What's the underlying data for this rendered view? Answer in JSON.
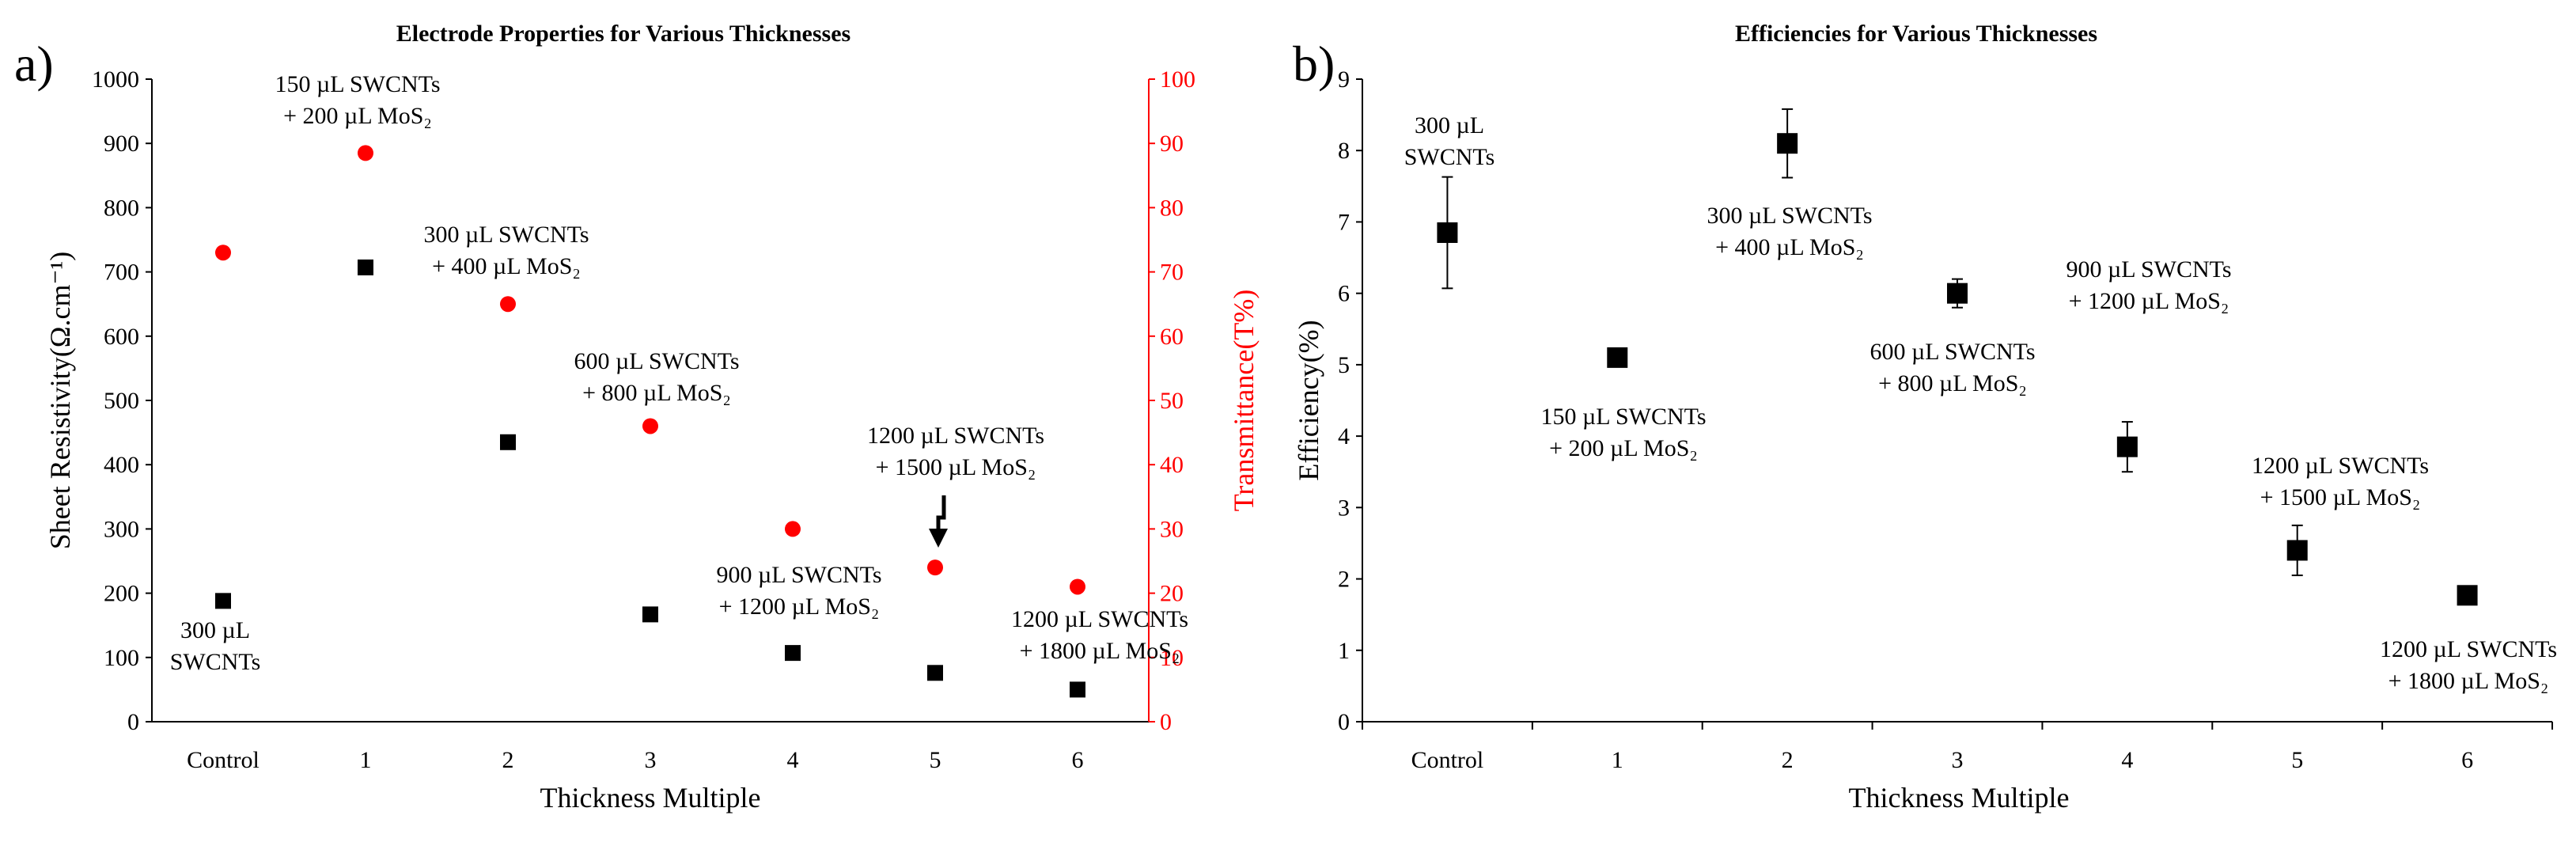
{
  "chart_data": [
    {
      "panel_label": "a)",
      "type": "scatter",
      "title": "Electrode Properties for Various Thicknesses",
      "xlabel": "Thickness Multiple",
      "ylabel": "Sheet Resistivity(Ω.cm⁻¹)",
      "y2label": "Transmittance(T%)",
      "categories": [
        "Control",
        "1",
        "2",
        "3",
        "4",
        "5",
        "6"
      ],
      "ylim": [
        0,
        1000
      ],
      "y2lim": [
        0,
        100
      ],
      "yticks": [
        "0",
        "100",
        "200",
        "300",
        "400",
        "500",
        "600",
        "700",
        "800",
        "900",
        "1000"
      ],
      "y2ticks": [
        "0",
        "10",
        "20",
        "30",
        "40",
        "50",
        "60",
        "70",
        "80",
        "90",
        "100"
      ],
      "series": [
        {
          "name": "Sheet Resistivity",
          "axis": "left",
          "color": "#000000",
          "marker": "square",
          "values": [
            188,
            707,
            435,
            167,
            107,
            76,
            50
          ]
        },
        {
          "name": "Transmittance",
          "axis": "right",
          "color": "#ff0000",
          "marker": "circle",
          "values": [
            73,
            88.5,
            65,
            46,
            30,
            24,
            21
          ]
        }
      ],
      "annotations": [
        {
          "lines": [
            "300 µL",
            "SWCNTs"
          ],
          "category": "Control",
          "align": "center"
        },
        {
          "lines": [
            "150 µL SWCNTs",
            "+ 200 µL MoS₂"
          ],
          "category": "1",
          "align": "center"
        },
        {
          "lines": [
            "300 µL SWCNTs",
            "+ 400 µL MoS₂"
          ],
          "category": "2",
          "align": "center"
        },
        {
          "lines": [
            "600 µL SWCNTs",
            "+ 800 µL MoS₂"
          ],
          "category": "3",
          "align": "center"
        },
        {
          "lines": [
            "1200 µL SWCNTs",
            "+ 1500 µL MoS₂"
          ],
          "category": "5",
          "align": "center"
        },
        {
          "lines": [
            "900 µL SWCNTs",
            "+ 1200 µL MoS₂"
          ],
          "category": "4",
          "align": "center"
        },
        {
          "lines": [
            "1200 µL SWCNTs",
            "+ 1800 µL MoS₂"
          ],
          "category": "6",
          "align": "center"
        }
      ]
    },
    {
      "panel_label": "b)",
      "type": "scatter",
      "title": "Efficiencies for Various Thicknesses",
      "xlabel": "Thickness Multiple",
      "ylabel": "Efficiency(%)",
      "categories": [
        "Control",
        "1",
        "2",
        "3",
        "4",
        "5",
        "6"
      ],
      "ylim": [
        0,
        9
      ],
      "yticks": [
        "0",
        "1",
        "2",
        "3",
        "4",
        "5",
        "6",
        "7",
        "8",
        "9"
      ],
      "series": [
        {
          "name": "Efficiency",
          "color": "#000000",
          "marker": "square",
          "values": [
            6.85,
            5.1,
            8.1,
            6.0,
            3.85,
            2.4,
            1.77
          ],
          "error": [
            0.78,
            0.12,
            0.48,
            0.2,
            0.35,
            0.35,
            0.05
          ]
        }
      ],
      "annotations": [
        {
          "lines": [
            "300 µL",
            "SWCNTs"
          ],
          "category": "Control",
          "align": "center"
        },
        {
          "lines": [
            "150 µL SWCNTs",
            "+ 200 µL MoS₂"
          ],
          "category": "1",
          "align": "center"
        },
        {
          "lines": [
            "300 µL SWCNTs",
            "+ 400 µL MoS₂"
          ],
          "category": "2",
          "align": "center"
        },
        {
          "lines": [
            "600 µL SWCNTs",
            "+ 800 µL MoS₂"
          ],
          "category": "3",
          "align": "center"
        },
        {
          "lines": [
            "900 µL SWCNTs",
            "+ 1200 µL MoS₂"
          ],
          "category": "4",
          "align": "center"
        },
        {
          "lines": [
            "1200 µL SWCNTs",
            "+ 1500 µL MoS₂"
          ],
          "category": "5",
          "align": "center"
        },
        {
          "lines": [
            "1200 µL SWCNTs",
            "+ 1800 µL MoS₂"
          ],
          "category": "6",
          "align": "center"
        }
      ]
    }
  ]
}
